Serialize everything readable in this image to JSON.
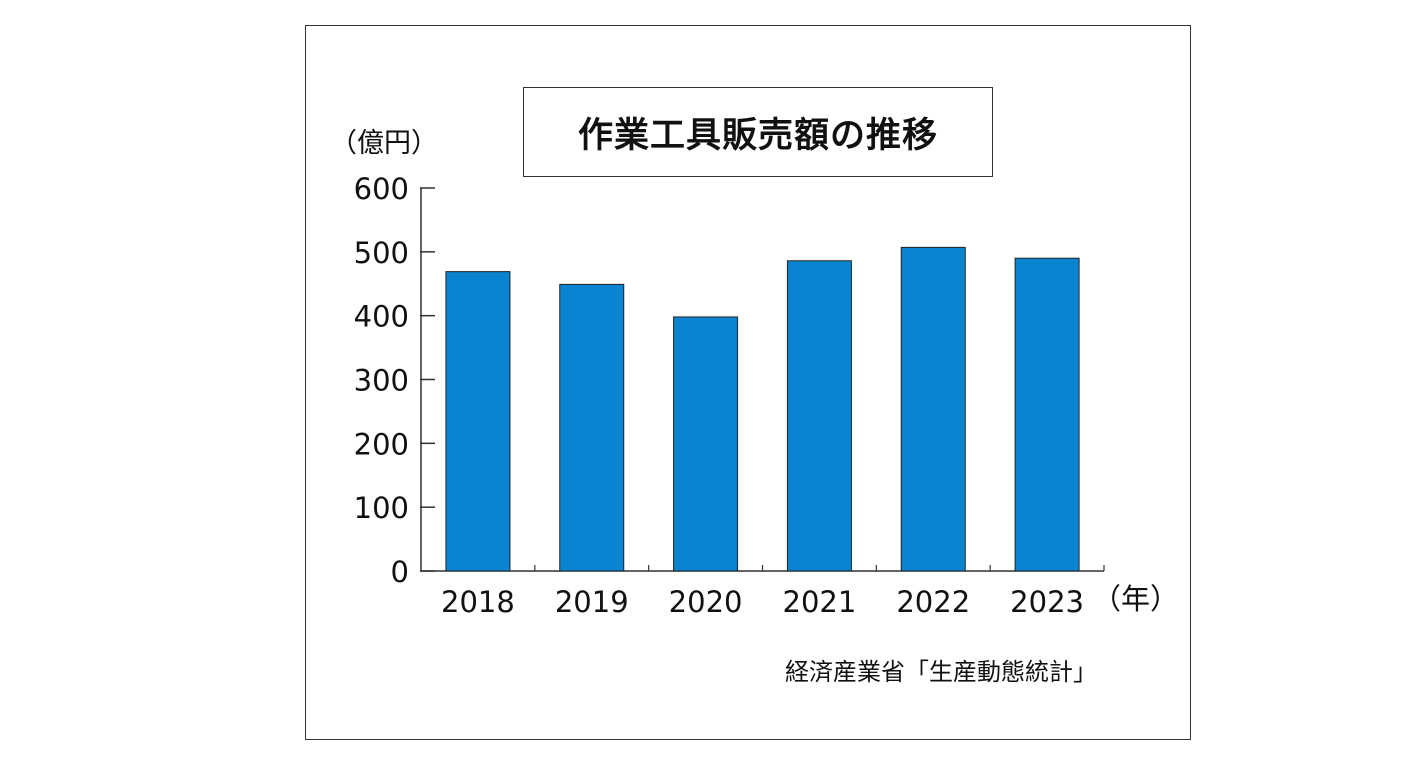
{
  "chart_data": {
    "type": "bar",
    "title": "作業工具販売額の推移",
    "ylabel": "（億円）",
    "xunit": "（年）",
    "source": "経済産業省「生産動態統計」",
    "categories": [
      "2018",
      "2019",
      "2020",
      "2021",
      "2022",
      "2023"
    ],
    "values": [
      469,
      449,
      398,
      486,
      507,
      490
    ],
    "ylim": [
      0,
      600
    ],
    "yticks": [
      "0",
      "100",
      "200",
      "300",
      "400",
      "500",
      "600"
    ],
    "bar_color": "#0A84D0",
    "grid": false,
    "legend": "none"
  }
}
